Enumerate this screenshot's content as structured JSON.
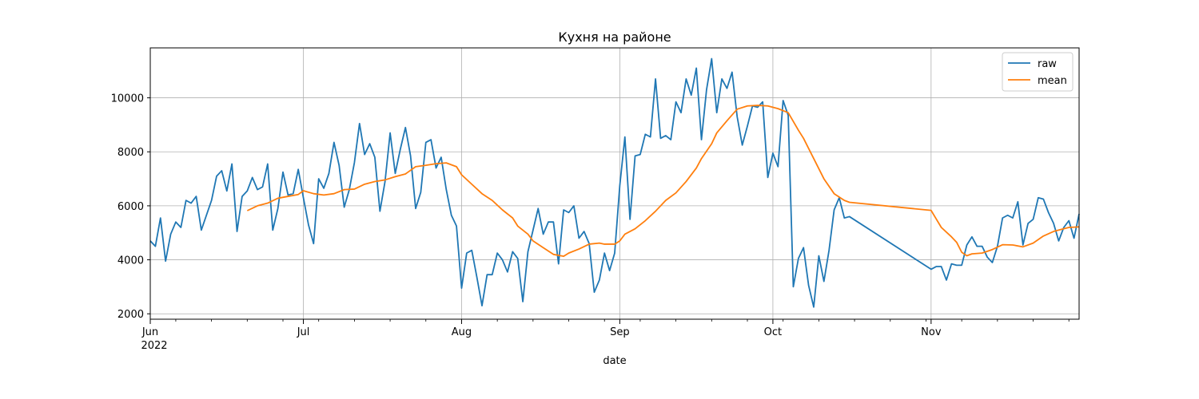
{
  "chart_data": {
    "type": "line",
    "title": "Кухня на районе",
    "xlabel": "date",
    "ylabel": "",
    "xlim": [
      "2022-06-01",
      "2022-11-30"
    ],
    "ylim": [
      1800,
      11850
    ],
    "grid": true,
    "legend_position": "top-right",
    "x_ticks": [
      {
        "date": "2022-06-01",
        "label": "Jun",
        "sublabel": "2022"
      },
      {
        "date": "2022-07-01",
        "label": "Jul",
        "sublabel": ""
      },
      {
        "date": "2022-08-01",
        "label": "Aug",
        "sublabel": ""
      },
      {
        "date": "2022-09-01",
        "label": "Sep",
        "sublabel": ""
      },
      {
        "date": "2022-10-01",
        "label": "Oct",
        "sublabel": ""
      },
      {
        "date": "2022-11-01",
        "label": "Nov",
        "sublabel": ""
      }
    ],
    "y_ticks": [
      2000,
      4000,
      6000,
      8000,
      10000
    ],
    "series": [
      {
        "name": "raw",
        "color": "#1f77b4",
        "points": [
          [
            "2022-06-01",
            4700
          ],
          [
            "2022-06-02",
            4500
          ],
          [
            "2022-06-03",
            5550
          ],
          [
            "2022-06-04",
            3950
          ],
          [
            "2022-06-05",
            4950
          ],
          [
            "2022-06-06",
            5400
          ],
          [
            "2022-06-07",
            5200
          ],
          [
            "2022-06-08",
            6200
          ],
          [
            "2022-06-09",
            6100
          ],
          [
            "2022-06-10",
            6350
          ],
          [
            "2022-06-11",
            5100
          ],
          [
            "2022-06-12",
            5650
          ],
          [
            "2022-06-13",
            6200
          ],
          [
            "2022-06-14",
            7100
          ],
          [
            "2022-06-15",
            7300
          ],
          [
            "2022-06-16",
            6550
          ],
          [
            "2022-06-17",
            7550
          ],
          [
            "2022-06-18",
            5050
          ],
          [
            "2022-06-19",
            6350
          ],
          [
            "2022-06-20",
            6550
          ],
          [
            "2022-06-21",
            7050
          ],
          [
            "2022-06-22",
            6600
          ],
          [
            "2022-06-23",
            6700
          ],
          [
            "2022-06-24",
            7550
          ],
          [
            "2022-06-25",
            5100
          ],
          [
            "2022-06-26",
            5900
          ],
          [
            "2022-06-27",
            7250
          ],
          [
            "2022-06-28",
            6400
          ],
          [
            "2022-06-29",
            6450
          ],
          [
            "2022-06-30",
            7350
          ],
          [
            "2022-07-01",
            6300
          ],
          [
            "2022-07-02",
            5300
          ],
          [
            "2022-07-03",
            4600
          ],
          [
            "2022-07-04",
            7000
          ],
          [
            "2022-07-05",
            6650
          ],
          [
            "2022-07-06",
            7200
          ],
          [
            "2022-07-07",
            8350
          ],
          [
            "2022-07-08",
            7500
          ],
          [
            "2022-07-09",
            5950
          ],
          [
            "2022-07-10",
            6600
          ],
          [
            "2022-07-11",
            7600
          ],
          [
            "2022-07-12",
            9050
          ],
          [
            "2022-07-13",
            7900
          ],
          [
            "2022-07-14",
            8300
          ],
          [
            "2022-07-15",
            7800
          ],
          [
            "2022-07-16",
            5800
          ],
          [
            "2022-07-17",
            6900
          ],
          [
            "2022-07-18",
            8700
          ],
          [
            "2022-07-19",
            7200
          ],
          [
            "2022-07-20",
            8100
          ],
          [
            "2022-07-21",
            8900
          ],
          [
            "2022-07-22",
            7850
          ],
          [
            "2022-07-23",
            5900
          ],
          [
            "2022-07-24",
            6500
          ],
          [
            "2022-07-25",
            8350
          ],
          [
            "2022-07-26",
            8450
          ],
          [
            "2022-07-27",
            7400
          ],
          [
            "2022-07-28",
            7800
          ],
          [
            "2022-07-29",
            6600
          ],
          [
            "2022-07-30",
            5650
          ],
          [
            "2022-07-31",
            5250
          ],
          [
            "2022-08-01",
            2950
          ],
          [
            "2022-08-02",
            4250
          ],
          [
            "2022-08-03",
            4350
          ],
          [
            "2022-08-04",
            3350
          ],
          [
            "2022-08-05",
            2300
          ],
          [
            "2022-08-06",
            3450
          ],
          [
            "2022-08-07",
            3450
          ],
          [
            "2022-08-08",
            4250
          ],
          [
            "2022-08-09",
            4000
          ],
          [
            "2022-08-10",
            3550
          ],
          [
            "2022-08-11",
            4300
          ],
          [
            "2022-08-12",
            4050
          ],
          [
            "2022-08-13",
            2450
          ],
          [
            "2022-08-14",
            4300
          ],
          [
            "2022-08-15",
            5100
          ],
          [
            "2022-08-16",
            5900
          ],
          [
            "2022-08-17",
            4950
          ],
          [
            "2022-08-18",
            5400
          ],
          [
            "2022-08-19",
            5400
          ],
          [
            "2022-08-20",
            3850
          ],
          [
            "2022-08-21",
            5850
          ],
          [
            "2022-08-22",
            5750
          ],
          [
            "2022-08-23",
            6000
          ],
          [
            "2022-08-24",
            4800
          ],
          [
            "2022-08-25",
            5050
          ],
          [
            "2022-08-26",
            4600
          ],
          [
            "2022-08-27",
            2800
          ],
          [
            "2022-08-28",
            3250
          ],
          [
            "2022-08-29",
            4250
          ],
          [
            "2022-08-30",
            3600
          ],
          [
            "2022-08-31",
            4250
          ],
          [
            "2022-09-01",
            6750
          ],
          [
            "2022-09-02",
            8550
          ],
          [
            "2022-09-03",
            5500
          ],
          [
            "2022-09-04",
            7850
          ],
          [
            "2022-09-05",
            7900
          ],
          [
            "2022-09-06",
            8650
          ],
          [
            "2022-09-07",
            8550
          ],
          [
            "2022-09-08",
            10700
          ],
          [
            "2022-09-09",
            8500
          ],
          [
            "2022-09-10",
            8600
          ],
          [
            "2022-09-11",
            8450
          ],
          [
            "2022-09-12",
            9850
          ],
          [
            "2022-09-13",
            9450
          ],
          [
            "2022-09-14",
            10700
          ],
          [
            "2022-09-15",
            10100
          ],
          [
            "2022-09-16",
            11100
          ],
          [
            "2022-09-17",
            8450
          ],
          [
            "2022-09-18",
            10300
          ],
          [
            "2022-09-19",
            11450
          ],
          [
            "2022-09-20",
            9450
          ],
          [
            "2022-09-21",
            10700
          ],
          [
            "2022-09-22",
            10350
          ],
          [
            "2022-09-23",
            10950
          ],
          [
            "2022-09-24",
            9300
          ],
          [
            "2022-09-25",
            8250
          ],
          [
            "2022-09-26",
            8950
          ],
          [
            "2022-09-27",
            9700
          ],
          [
            "2022-09-28",
            9650
          ],
          [
            "2022-09-29",
            9850
          ],
          [
            "2022-09-30",
            7050
          ],
          [
            "2022-10-01",
            7950
          ],
          [
            "2022-10-02",
            7450
          ],
          [
            "2022-10-03",
            9900
          ],
          [
            "2022-10-04",
            9350
          ],
          [
            "2022-10-05",
            3000
          ],
          [
            "2022-10-06",
            4050
          ],
          [
            "2022-10-07",
            4450
          ],
          [
            "2022-10-08",
            3050
          ],
          [
            "2022-10-09",
            2250
          ],
          [
            "2022-10-10",
            4150
          ],
          [
            "2022-10-11",
            3200
          ],
          [
            "2022-10-12",
            4350
          ],
          [
            "2022-10-13",
            5850
          ],
          [
            "2022-10-14",
            6300
          ],
          [
            "2022-10-15",
            5550
          ],
          [
            "2022-10-16",
            5600
          ],
          [
            "2022-11-01",
            3650
          ],
          [
            "2022-11-02",
            3750
          ],
          [
            "2022-11-03",
            3750
          ],
          [
            "2022-11-04",
            3250
          ],
          [
            "2022-11-05",
            3850
          ],
          [
            "2022-11-06",
            3800
          ],
          [
            "2022-11-07",
            3800
          ],
          [
            "2022-11-08",
            4550
          ],
          [
            "2022-11-09",
            4850
          ],
          [
            "2022-11-10",
            4500
          ],
          [
            "2022-11-11",
            4500
          ],
          [
            "2022-11-12",
            4100
          ],
          [
            "2022-11-13",
            3900
          ],
          [
            "2022-11-14",
            4500
          ],
          [
            "2022-11-15",
            5550
          ],
          [
            "2022-11-16",
            5650
          ],
          [
            "2022-11-17",
            5550
          ],
          [
            "2022-11-18",
            6150
          ],
          [
            "2022-11-19",
            4550
          ],
          [
            "2022-11-20",
            5350
          ],
          [
            "2022-11-21",
            5500
          ],
          [
            "2022-11-22",
            6300
          ],
          [
            "2022-11-23",
            6250
          ],
          [
            "2022-11-24",
            5750
          ],
          [
            "2022-11-25",
            5350
          ],
          [
            "2022-11-26",
            4700
          ],
          [
            "2022-11-27",
            5200
          ],
          [
            "2022-11-28",
            5450
          ],
          [
            "2022-11-29",
            4800
          ],
          [
            "2022-11-30",
            5700
          ]
        ]
      },
      {
        "name": "mean",
        "color": "#ff7f0e",
        "points": [
          [
            "2022-06-20",
            5820
          ],
          [
            "2022-06-22",
            6000
          ],
          [
            "2022-06-24",
            6100
          ],
          [
            "2022-06-26",
            6280
          ],
          [
            "2022-06-28",
            6350
          ],
          [
            "2022-06-30",
            6420
          ],
          [
            "2022-07-01",
            6560
          ],
          [
            "2022-07-03",
            6450
          ],
          [
            "2022-07-05",
            6400
          ],
          [
            "2022-07-07",
            6450
          ],
          [
            "2022-07-09",
            6600
          ],
          [
            "2022-07-11",
            6620
          ],
          [
            "2022-07-13",
            6800
          ],
          [
            "2022-07-15",
            6900
          ],
          [
            "2022-07-17",
            6960
          ],
          [
            "2022-07-19",
            7080
          ],
          [
            "2022-07-21",
            7180
          ],
          [
            "2022-07-23",
            7450
          ],
          [
            "2022-07-25",
            7500
          ],
          [
            "2022-07-27",
            7560
          ],
          [
            "2022-07-29",
            7590
          ],
          [
            "2022-07-31",
            7450
          ],
          [
            "2022-08-01",
            7150
          ],
          [
            "2022-08-03",
            6800
          ],
          [
            "2022-08-05",
            6450
          ],
          [
            "2022-08-07",
            6200
          ],
          [
            "2022-08-09",
            5850
          ],
          [
            "2022-08-11",
            5550
          ],
          [
            "2022-08-12",
            5250
          ],
          [
            "2022-08-14",
            4950
          ],
          [
            "2022-08-15",
            4700
          ],
          [
            "2022-08-17",
            4450
          ],
          [
            "2022-08-19",
            4200
          ],
          [
            "2022-08-21",
            4130
          ],
          [
            "2022-08-22",
            4250
          ],
          [
            "2022-08-24",
            4400
          ],
          [
            "2022-08-26",
            4580
          ],
          [
            "2022-08-28",
            4620
          ],
          [
            "2022-08-29",
            4580
          ],
          [
            "2022-08-31",
            4580
          ],
          [
            "2022-09-01",
            4700
          ],
          [
            "2022-09-02",
            4950
          ],
          [
            "2022-09-04",
            5150
          ],
          [
            "2022-09-06",
            5450
          ],
          [
            "2022-09-08",
            5800
          ],
          [
            "2022-09-10",
            6200
          ],
          [
            "2022-09-12",
            6480
          ],
          [
            "2022-09-14",
            6900
          ],
          [
            "2022-09-16",
            7400
          ],
          [
            "2022-09-17",
            7750
          ],
          [
            "2022-09-19",
            8300
          ],
          [
            "2022-09-20",
            8700
          ],
          [
            "2022-09-22",
            9150
          ],
          [
            "2022-09-24",
            9580
          ],
          [
            "2022-09-26",
            9700
          ],
          [
            "2022-09-28",
            9720
          ],
          [
            "2022-09-30",
            9700
          ],
          [
            "2022-10-02",
            9600
          ],
          [
            "2022-10-04",
            9450
          ],
          [
            "2022-10-06",
            8800
          ],
          [
            "2022-10-07",
            8500
          ],
          [
            "2022-10-09",
            7750
          ],
          [
            "2022-10-11",
            7000
          ],
          [
            "2022-10-13",
            6450
          ],
          [
            "2022-10-15",
            6200
          ],
          [
            "2022-10-16",
            6130
          ],
          [
            "2022-11-01",
            5830
          ],
          [
            "2022-11-03",
            5200
          ],
          [
            "2022-11-05",
            4850
          ],
          [
            "2022-11-06",
            4650
          ],
          [
            "2022-11-07",
            4280
          ],
          [
            "2022-11-08",
            4150
          ],
          [
            "2022-11-09",
            4220
          ],
          [
            "2022-11-11",
            4250
          ],
          [
            "2022-11-13",
            4380
          ],
          [
            "2022-11-15",
            4560
          ],
          [
            "2022-11-17",
            4550
          ],
          [
            "2022-11-19",
            4480
          ],
          [
            "2022-11-21",
            4620
          ],
          [
            "2022-11-23",
            4880
          ],
          [
            "2022-11-25",
            5050
          ],
          [
            "2022-11-27",
            5150
          ],
          [
            "2022-11-28",
            5200
          ],
          [
            "2022-11-30",
            5220
          ]
        ]
      }
    ]
  }
}
